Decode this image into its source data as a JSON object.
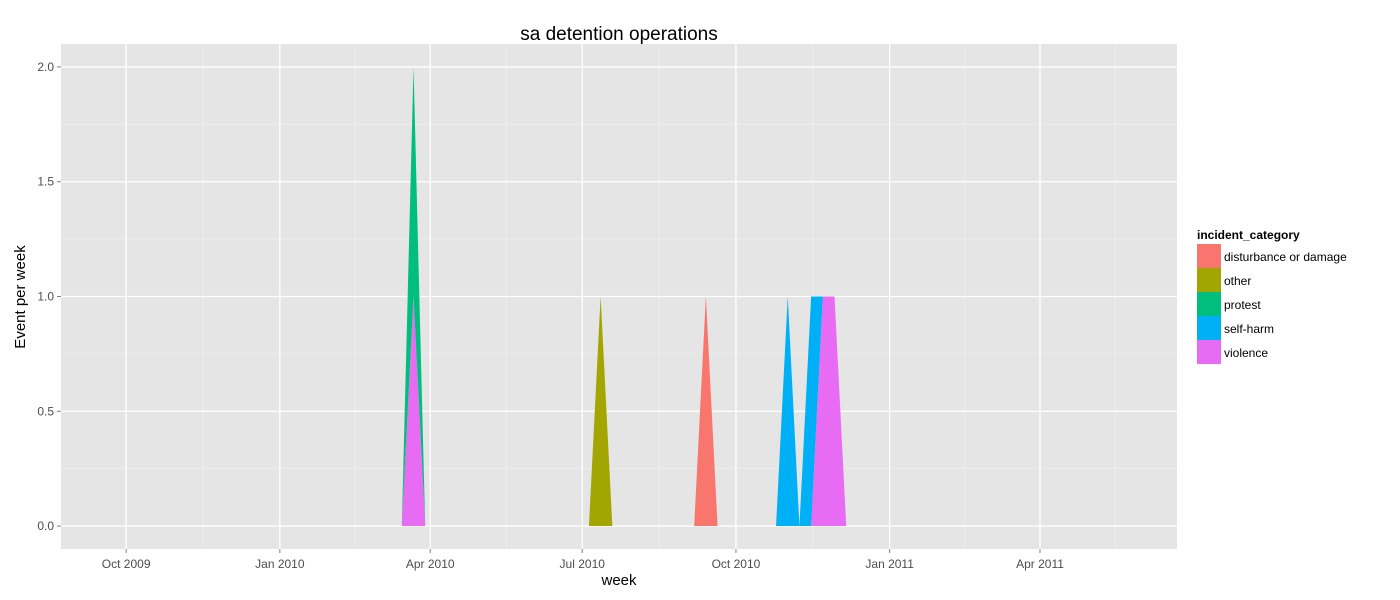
{
  "chart_data": {
    "type": "area",
    "title": "sa detention operations",
    "xlabel": "week",
    "ylabel": "Event per week",
    "x_type": "date",
    "xlim": [
      "2009-08-23",
      "2011-06-22"
    ],
    "ylim": [
      -0.1,
      2.1
    ],
    "x_ticks": [
      {
        "date": "2009-10-01",
        "label": "Oct 2009"
      },
      {
        "date": "2010-01-01",
        "label": "Jan 2010"
      },
      {
        "date": "2010-04-01",
        "label": "Apr 2010"
      },
      {
        "date": "2010-07-01",
        "label": "Jul 2010"
      },
      {
        "date": "2010-10-01",
        "label": "Oct 2010"
      },
      {
        "date": "2011-01-01",
        "label": "Jan 2011"
      },
      {
        "date": "2011-04-01",
        "label": "Apr 2011"
      }
    ],
    "y_ticks": [
      0.0,
      0.5,
      1.0,
      1.5,
      2.0
    ],
    "y_tick_labels": [
      "0.0",
      "0.5",
      "1.0",
      "1.5",
      "2.0"
    ],
    "grid": true,
    "stacked": true,
    "legend": {
      "title": "incident_category",
      "position": "right"
    },
    "series": [
      {
        "name": "disturbance or damage",
        "color": "#F8766D",
        "points": [
          [
            "2010-09-06",
            0
          ],
          [
            "2010-09-13",
            1
          ],
          [
            "2010-09-20",
            0
          ]
        ]
      },
      {
        "name": "other",
        "color": "#A3A500",
        "points": [
          [
            "2010-07-05",
            0
          ],
          [
            "2010-07-12",
            1
          ],
          [
            "2010-07-19",
            0
          ]
        ]
      },
      {
        "name": "protest",
        "color": "#00BF7D",
        "points": [
          [
            "2010-03-15",
            0
          ],
          [
            "2010-03-22",
            1
          ],
          [
            "2010-03-29",
            0
          ]
        ]
      },
      {
        "name": "self-harm",
        "color": "#00B0F6",
        "points": [
          [
            "2010-10-25",
            0
          ],
          [
            "2010-11-01",
            1
          ],
          [
            "2010-11-08",
            0
          ],
          [
            "2010-11-15",
            1
          ],
          [
            "2010-11-22",
            0
          ]
        ]
      },
      {
        "name": "violence",
        "color": "#E76BF3",
        "points": [
          [
            "2010-03-15",
            0
          ],
          [
            "2010-03-22",
            1
          ],
          [
            "2010-03-29",
            0
          ],
          [
            "2010-11-15",
            0
          ],
          [
            "2010-11-22",
            1
          ],
          [
            "2010-11-29",
            1
          ],
          [
            "2010-12-06",
            0
          ]
        ]
      }
    ]
  }
}
